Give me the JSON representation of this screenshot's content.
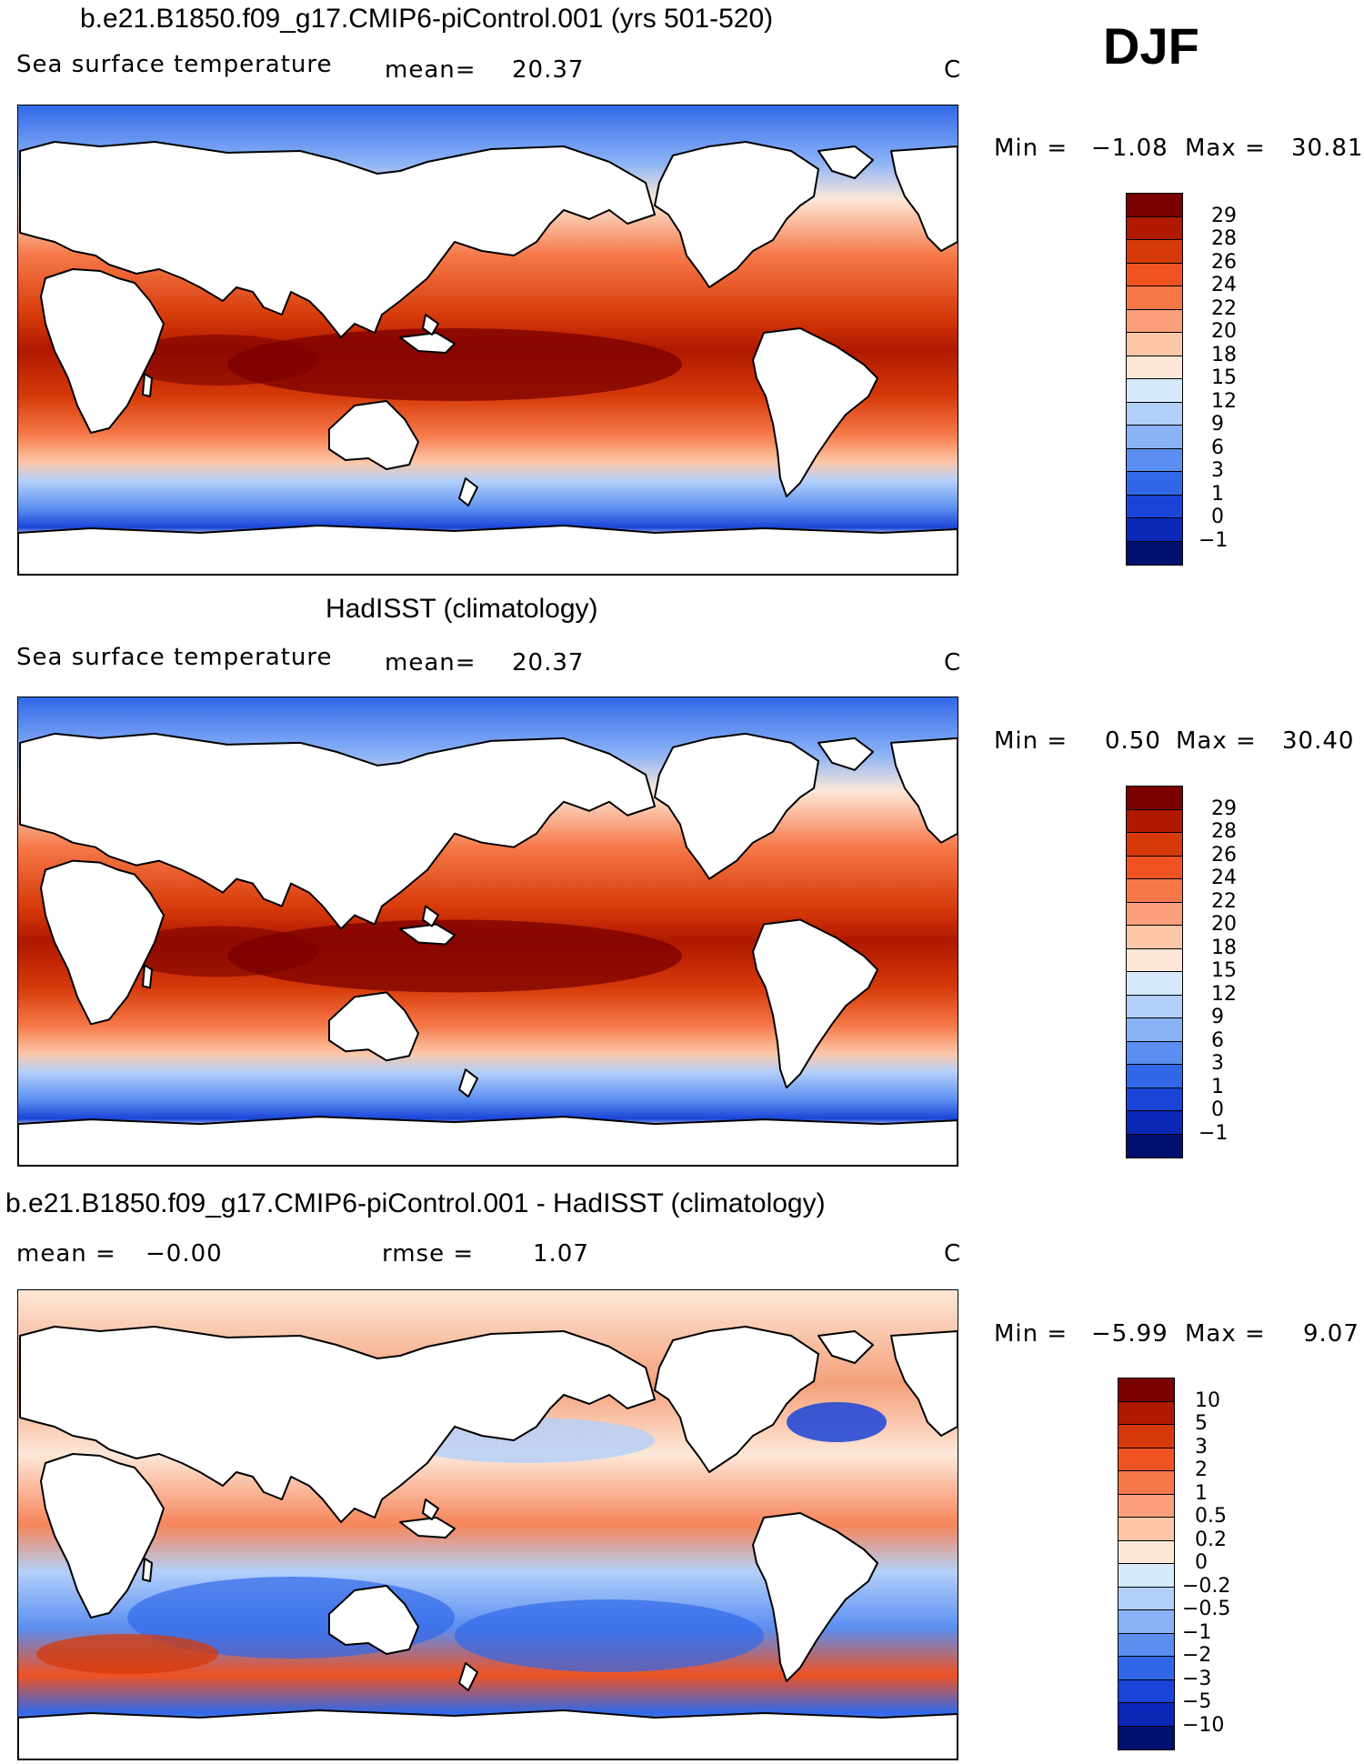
{
  "season": "DJF",
  "panels": [
    {
      "title": "b.e21.B1850.f09_g17.CMIP6-piControl.001 (yrs 501-520)",
      "variable": "Sea surface temperature",
      "stat_left": "mean=",
      "stat_left_value": "20.37",
      "stat_right": "",
      "stat_right_value": "",
      "units": "C",
      "min_label": "Min =",
      "min_value": "−1.08",
      "max_label": "Max =",
      "max_value": "30.81",
      "kind": "model"
    },
    {
      "title": "HadISST (climatology)",
      "variable": "Sea surface temperature",
      "stat_left": "mean=",
      "stat_left_value": "20.37",
      "stat_right": "",
      "stat_right_value": "",
      "units": "C",
      "min_label": "Min =",
      "min_value": "0.50",
      "max_label": "Max =",
      "max_value": "30.40",
      "kind": "obs"
    },
    {
      "title": "b.e21.B1850.f09_g17.CMIP6-piControl.001 - HadISST (climatology)",
      "variable": "",
      "stat_left": "mean =",
      "stat_left_value": "−0.00",
      "stat_right": "rmse =",
      "stat_right_value": "1.07",
      "units": "C",
      "min_label": "Min =",
      "min_value": "−5.99",
      "max_label": "Max =",
      "max_value": "9.07",
      "kind": "diff"
    }
  ],
  "colorbars": {
    "sst": {
      "labels": [
        "29",
        "28",
        "26",
        "24",
        "22",
        "20",
        "18",
        "15",
        "12",
        "9",
        "6",
        "3",
        "1",
        "0",
        "−1"
      ],
      "colors": [
        "#7a0000",
        "#b01800",
        "#d63a0a",
        "#f05222",
        "#f67848",
        "#fba07a",
        "#fdc7a8",
        "#fde8d8",
        "#d6eafb",
        "#b3d0fa",
        "#8ab2f7",
        "#5a8ef0",
        "#3268e8",
        "#1a44d8",
        "#0a28b8",
        "#00106f"
      ]
    },
    "diff": {
      "labels": [
        "10",
        "5",
        "3",
        "2",
        "1",
        "0.5",
        "0.2",
        "0",
        "−0.2",
        "−0.5",
        "−1",
        "−2",
        "−3",
        "−5",
        "−10"
      ],
      "colors": [
        "#7a0000",
        "#b01800",
        "#d63a0a",
        "#f05222",
        "#f67848",
        "#fba07a",
        "#fdc7a8",
        "#fde8d8",
        "#d6eafb",
        "#b3d0fa",
        "#8ab2f7",
        "#5a8ef0",
        "#3268e8",
        "#1a44d8",
        "#0a28b8",
        "#00106f"
      ]
    }
  }
}
